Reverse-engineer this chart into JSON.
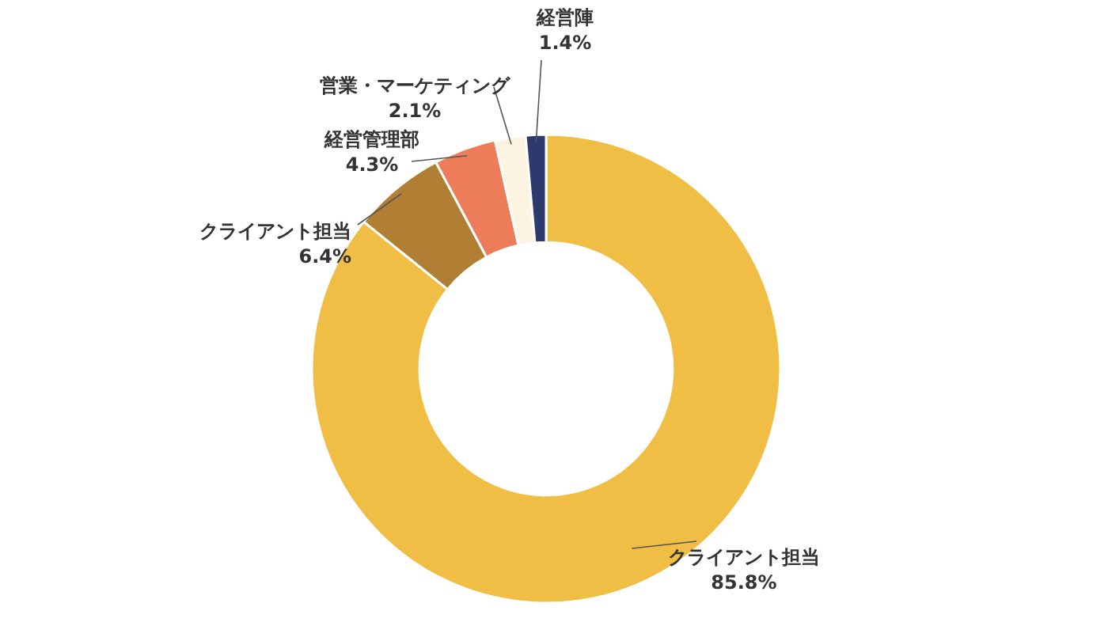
{
  "chart_data": {
    "type": "donut",
    "categories": [
      "クライアント担当",
      "クライアント担当",
      "経営管理部",
      "営業・マーケティング",
      "経営陣"
    ],
    "values": [
      85.8,
      6.4,
      4.3,
      2.1,
      1.4
    ],
    "colors": [
      "#f0bd45",
      "#b07f34",
      "#ed7d5a",
      "#fdf3e1",
      "#2e3a6e"
    ],
    "value_labels": [
      "85.8%",
      "6.4%",
      "4.3%",
      "2.1%",
      "1.4%"
    ]
  }
}
